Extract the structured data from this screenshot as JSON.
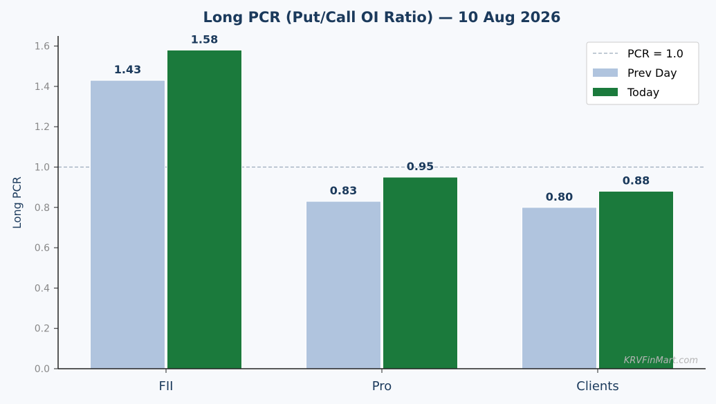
{
  "chart_data": {
    "type": "bar",
    "title": "Long PCR (Put/Call OI Ratio) — 10 Aug 2026",
    "xlabel": "",
    "ylabel": "Long PCR",
    "categories": [
      "FII",
      "Pro",
      "Clients"
    ],
    "series": [
      {
        "name": "Prev Day",
        "values": [
          1.43,
          0.83,
          0.8
        ],
        "labels": [
          "1.43",
          "0.83",
          "0.80"
        ],
        "color": "#b0c4de"
      },
      {
        "name": "Today",
        "values": [
          1.58,
          0.95,
          0.88
        ],
        "labels": [
          "1.58",
          "0.95",
          "0.88"
        ],
        "color": "#1b7a3c"
      }
    ],
    "ylim": [
      0,
      1.65
    ],
    "yticks": [
      0.0,
      0.2,
      0.4,
      0.6,
      0.8,
      1.0,
      1.2,
      1.4,
      1.6
    ],
    "ytick_labels": [
      "0.0",
      "0.2",
      "0.4",
      "0.6",
      "0.8",
      "1.0",
      "1.2",
      "1.4",
      "1.6"
    ],
    "reference_line": {
      "value": 1.0,
      "label": "PCR = 1.0",
      "color": "#9aaabb"
    },
    "grid": false,
    "legend_position": "top-right",
    "watermark": "KRVFinMart.com"
  }
}
